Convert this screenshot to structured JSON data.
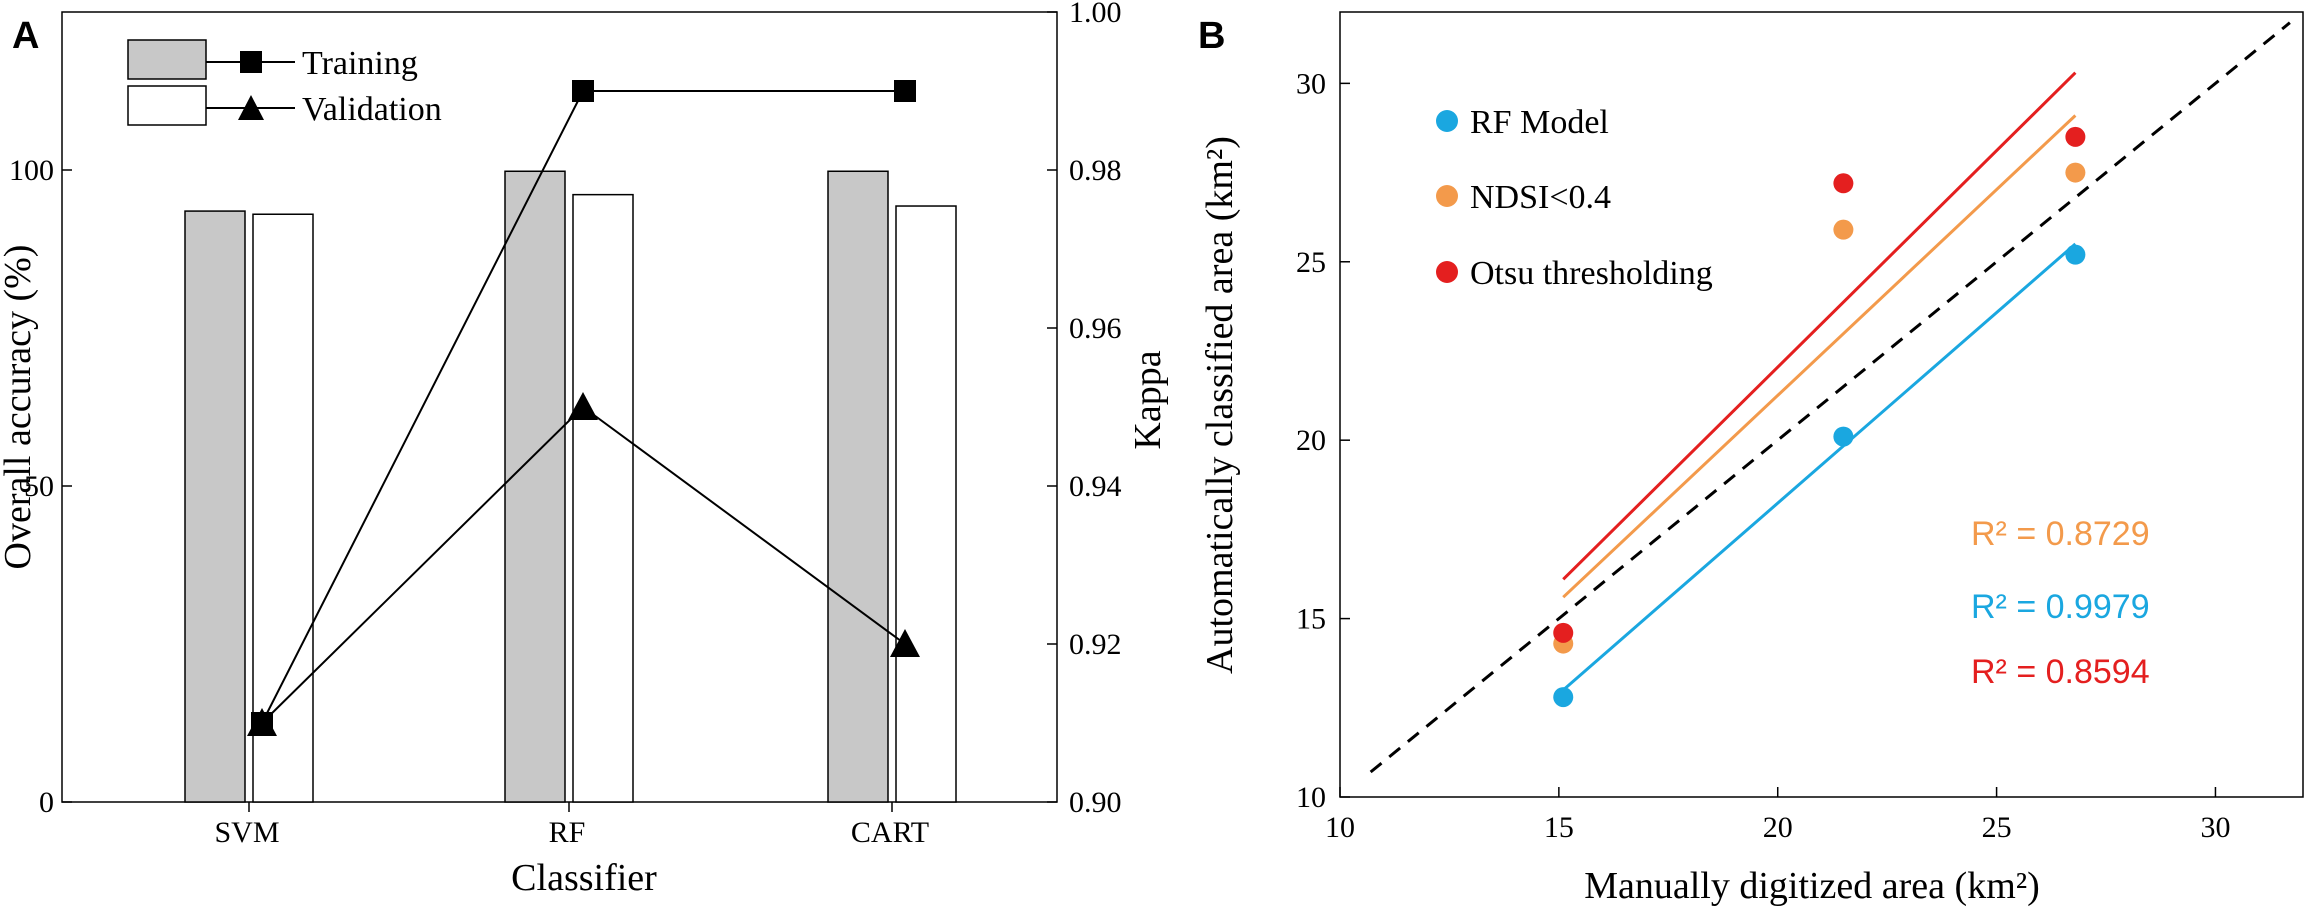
{
  "colors": {
    "training_bar": "#c8c8c8",
    "validation_bar": "#ffffff",
    "rf_model": "#1aa7e0",
    "ndsi": "#f39a4b",
    "otsu": "#e41f1f"
  },
  "chart_data": [
    {
      "panel": "A",
      "type": "bar",
      "xlabel": "Classifier",
      "ylabel": "Overall accuracy (%)",
      "y2label": "Kappa",
      "categories": [
        "SVM",
        "RF",
        "CART"
      ],
      "ylim": [
        0,
        125
      ],
      "yticks": [
        "0",
        "50",
        "100"
      ],
      "y2lim": [
        0.9,
        1.0
      ],
      "y2ticks": [
        "0.90",
        "0.92",
        "0.94",
        "0.96",
        "0.98",
        "1.00"
      ],
      "legend": [
        "Training",
        "Validation"
      ],
      "legend_position": "top-left",
      "series": [
        {
          "name": "Training",
          "kind": "bar",
          "axis": "left",
          "values": [
            93.5,
            99.8,
            99.8
          ]
        },
        {
          "name": "Validation",
          "kind": "bar",
          "axis": "left",
          "values": [
            93.0,
            96.1,
            94.3
          ]
        },
        {
          "name": "Training",
          "kind": "line-square",
          "axis": "right",
          "values": [
            0.91,
            0.99,
            0.99
          ]
        },
        {
          "name": "Validation",
          "kind": "line-triangle",
          "axis": "right",
          "values": [
            0.91,
            0.95,
            0.92
          ]
        }
      ]
    },
    {
      "panel": "B",
      "type": "scatter",
      "xlabel": "Manually digitized area (km²)",
      "ylabel": "Automatically classified area (km²)",
      "xlim": [
        10,
        32
      ],
      "ylim": [
        10,
        32
      ],
      "xticks": [
        "10",
        "15",
        "20",
        "25",
        "30"
      ],
      "yticks": [
        "10",
        "15",
        "20",
        "25",
        "30"
      ],
      "reference_line": "1:1 dashed",
      "legend_position": "top-left",
      "series": [
        {
          "name": "RF Model",
          "x": [
            15.1,
            21.5,
            26.8
          ],
          "y": [
            12.8,
            20.1,
            25.2
          ],
          "fit": [
            [
              15.1,
              13.0
            ],
            [
              26.8,
              25.5
            ]
          ],
          "r2": "R² = 0.9979",
          "color_key": "rf_model"
        },
        {
          "name": "NDSI<0.4",
          "x": [
            15.1,
            21.5,
            26.8
          ],
          "y": [
            14.3,
            25.9,
            27.5
          ],
          "fit": [
            [
              15.1,
              15.6
            ],
            [
              26.8,
              29.1
            ]
          ],
          "r2": "R² = 0.8729",
          "color_key": "ndsi"
        },
        {
          "name": "Otsu thresholding",
          "x": [
            15.1,
            21.5,
            26.8
          ],
          "y": [
            14.6,
            27.2,
            28.5
          ],
          "fit": [
            [
              15.1,
              16.1
            ],
            [
              26.8,
              30.3
            ]
          ],
          "r2": "R² = 0.8594",
          "color_key": "otsu"
        }
      ]
    }
  ]
}
